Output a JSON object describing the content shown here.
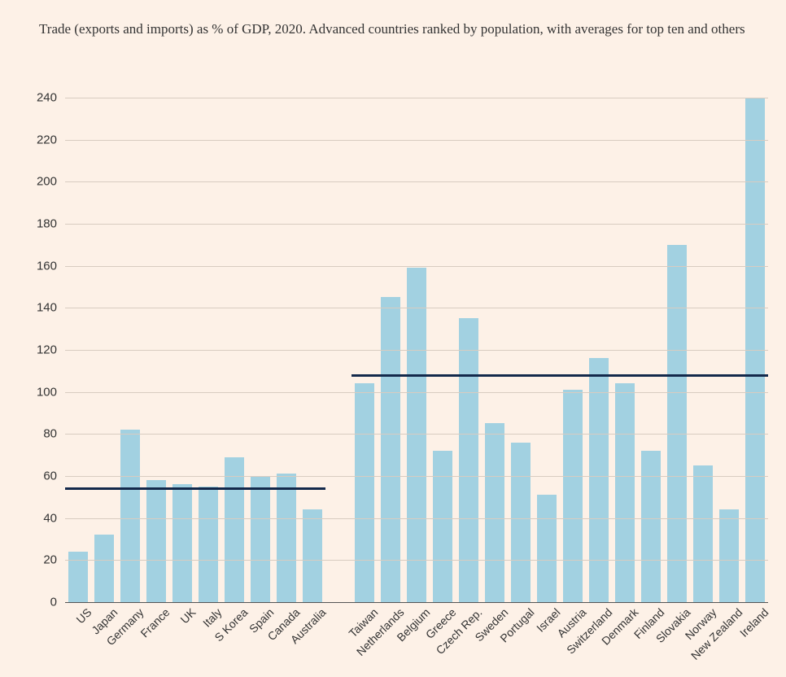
{
  "title": "Trade (exports and imports) as % of GDP, 2020. Advanced countries ranked by population, with averages for top ten and others",
  "chart": {
    "type": "bar",
    "background_color": "#fdf1e7",
    "grid_color": "#d8ccc1",
    "text_color": "#333333",
    "bar_color": "#a2d1e1",
    "avg_line_color": "#13294b",
    "title_fontsize": 17,
    "tick_fontsize": 15,
    "label_fontsize": 14,
    "ylim": [
      0,
      240
    ],
    "ytick_step": 20,
    "bar_width_ratio": 0.78,
    "group_gap_after_index": 9,
    "group_gap_slots": 1,
    "categories": [
      "US",
      "Japan",
      "Germany",
      "France",
      "UK",
      "Italy",
      "S Korea",
      "Spain",
      "Canada",
      "Australia",
      "Taiwan",
      "Netherlands",
      "Belgium",
      "Greece",
      "Czech Rep.",
      "Sweden",
      "Portugal",
      "Israel",
      "Austria",
      "Switzerland",
      "Denmark",
      "Finland",
      "Slovakia",
      "Norway",
      "New Zealand",
      "Ireland"
    ],
    "values": [
      24,
      32,
      82,
      58,
      56,
      55,
      69,
      60,
      61,
      44,
      104,
      145,
      159,
      72,
      135,
      85,
      76,
      51,
      101,
      116,
      104,
      72,
      170,
      65,
      44,
      240
    ],
    "averages": [
      {
        "label": "top-ten-average",
        "value": 54,
        "start_index": 0,
        "end_index": 9
      },
      {
        "label": "others-average",
        "value": 108,
        "start_index": 10,
        "end_index": 25
      }
    ]
  }
}
